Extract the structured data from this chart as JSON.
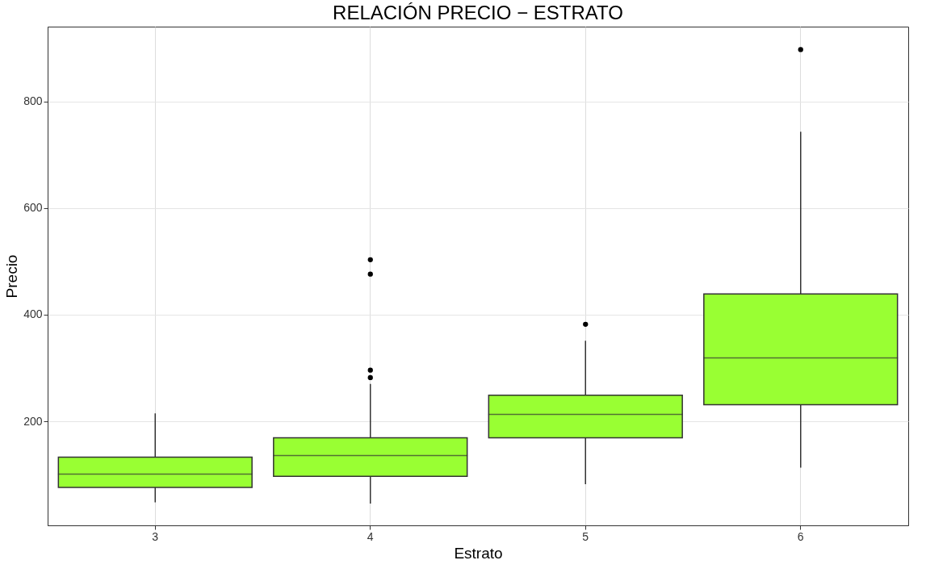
{
  "chart_data": {
    "type": "box",
    "title": "RELACIÓN PRECIO − ESTRATO",
    "xlabel": "Estrato",
    "ylabel": "Precio",
    "categories": [
      "3",
      "4",
      "5",
      "6"
    ],
    "series": [
      {
        "color": "#99ff33",
        "boxes": [
          {
            "low": 48,
            "q1": 76,
            "median": 101,
            "q3": 133,
            "high": 215
          },
          {
            "low": 46,
            "q1": 97,
            "median": 136,
            "q3": 169,
            "high": 270,
            "outliers": [
              503,
              476,
              296,
              282
            ]
          },
          {
            "low": 82,
            "q1": 169,
            "median": 213,
            "q3": 249,
            "high": 351,
            "outliers": [
              382
            ]
          },
          {
            "low": 113,
            "q1": 231,
            "median": 319,
            "q3": 439,
            "high": 743,
            "outliers": [
              897
            ]
          }
        ]
      }
    ],
    "ylim": [
      5,
      940
    ],
    "yticks": [
      200,
      400,
      600,
      800
    ],
    "grid": true
  }
}
